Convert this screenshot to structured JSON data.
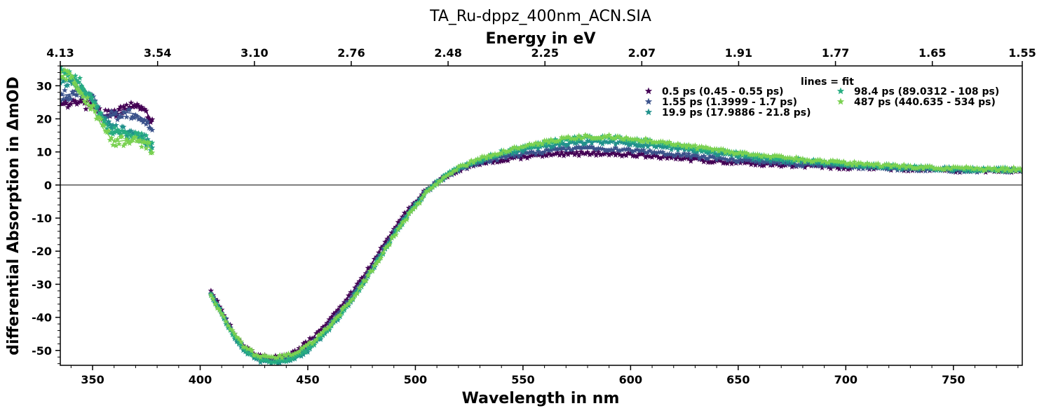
{
  "chart_data": {
    "type": "scatter",
    "title": "TA_Ru-dppz_400nm_ACN.SIA",
    "xlabel": "Wavelength in nm",
    "ylabel": "differential Absorption in ΔmOD",
    "top_xlabel": "Energy in eV",
    "xlim": [
      335,
      782
    ],
    "ylim": [
      -54.5,
      36
    ],
    "x_ticks": [
      350,
      400,
      450,
      500,
      550,
      600,
      650,
      700,
      750
    ],
    "y_ticks": [
      30,
      20,
      10,
      0,
      -10,
      -20,
      -30,
      -40,
      -50
    ],
    "top_ticks": [
      {
        "label": "4.13",
        "wavelength": 335
      },
      {
        "label": "3.54",
        "wavelength": 380.2
      },
      {
        "label": "3.10",
        "wavelength": 425.2
      },
      {
        "label": "2.76",
        "wavelength": 470.2
      },
      {
        "label": "2.48",
        "wavelength": 515.2
      },
      {
        "label": "2.25",
        "wavelength": 560.2
      },
      {
        "label": "2.07",
        "wavelength": 605.2
      },
      {
        "label": "1.91",
        "wavelength": 650.2
      },
      {
        "label": "1.77",
        "wavelength": 695.2
      },
      {
        "label": "1.65",
        "wavelength": 740.2
      },
      {
        "label": "1.55",
        "wavelength": 782
      }
    ],
    "zero_line": true,
    "grid": false,
    "legend_title": "lines = fit",
    "legend_position": "top-right",
    "series": [
      {
        "name": "0.5 ps (0.45 - 0.55 ps)",
        "color": "#440154",
        "uv": {
          "x": [
            335,
            340,
            345,
            350,
            355,
            360,
            365,
            370,
            375,
            378
          ],
          "y": [
            24,
            24.5,
            25,
            23.5,
            21,
            22,
            23,
            24,
            22,
            19
          ]
        },
        "vis": {
          "x": [
            405,
            410,
            415,
            420,
            425,
            430,
            435,
            440,
            445,
            450,
            455,
            460,
            465,
            470,
            475,
            480,
            485,
            490,
            495,
            500,
            505,
            510,
            515,
            520,
            530,
            540,
            550,
            560,
            570,
            580,
            590,
            600,
            620,
            640,
            660,
            680,
            700,
            720,
            740,
            760,
            782
          ],
          "y": [
            -32,
            -38,
            -44,
            -48.5,
            -51,
            -52,
            -52,
            -51.5,
            -50,
            -47.5,
            -44.5,
            -41,
            -37,
            -33,
            -28.5,
            -23.5,
            -18.5,
            -13.5,
            -9,
            -5,
            -1.5,
            1,
            3,
            4.5,
            6.5,
            7.7,
            8.5,
            9,
            9.4,
            9.5,
            9.5,
            9.2,
            8.2,
            7.2,
            6.4,
            5.8,
            5.3,
            5,
            4.6,
            4.3,
            4.3
          ]
        }
      },
      {
        "name": "1.55 ps (1.3999 - 1.7 ps)",
        "color": "#3b528b",
        "uv": {
          "x": [
            335,
            340,
            345,
            350,
            355,
            360,
            365,
            370,
            375,
            378
          ],
          "y": [
            27,
            27.5,
            27.5,
            26,
            20,
            21,
            22,
            21.5,
            19.5,
            16.5
          ]
        },
        "vis": {
          "x": [
            405,
            410,
            415,
            420,
            425,
            430,
            435,
            440,
            445,
            450,
            455,
            460,
            465,
            470,
            475,
            480,
            485,
            490,
            495,
            500,
            505,
            510,
            515,
            520,
            530,
            540,
            550,
            560,
            570,
            580,
            590,
            600,
            620,
            640,
            660,
            680,
            700,
            720,
            740,
            760,
            782
          ],
          "y": [
            -32.5,
            -38.5,
            -44.5,
            -49,
            -51.7,
            -52.8,
            -53,
            -52.5,
            -51.2,
            -49,
            -46,
            -42.5,
            -38.5,
            -34.3,
            -29.8,
            -24.8,
            -19.7,
            -14.6,
            -9.9,
            -5.7,
            -2,
            0.8,
            3,
            4.6,
            6.8,
            8.3,
            9.4,
            10.2,
            10.8,
            11,
            10.9,
            10.5,
            9.3,
            8,
            7,
            6.2,
            5.6,
            5.1,
            4.7,
            4.4,
            4.4
          ]
        }
      },
      {
        "name": "19.9 ps (17.9886 - 21.8 ps)",
        "color": "#21918c",
        "uv": {
          "x": [
            335,
            340,
            345,
            350,
            355,
            360,
            365,
            370,
            375,
            378
          ],
          "y": [
            32,
            31,
            29,
            25,
            19,
            17,
            16,
            15.5,
            13.5,
            11
          ]
        },
        "vis": {
          "x": [
            405,
            410,
            415,
            420,
            425,
            430,
            435,
            440,
            445,
            450,
            455,
            460,
            465,
            470,
            475,
            480,
            485,
            490,
            495,
            500,
            505,
            510,
            515,
            520,
            530,
            540,
            550,
            560,
            570,
            580,
            590,
            600,
            620,
            640,
            660,
            680,
            700,
            720,
            740,
            760,
            782
          ],
          "y": [
            -33,
            -39,
            -45,
            -49.5,
            -52.3,
            -53.5,
            -53.8,
            -53.4,
            -52.2,
            -50,
            -47,
            -43.5,
            -39.5,
            -35.2,
            -30.6,
            -25.5,
            -20.3,
            -15.1,
            -10.3,
            -6,
            -2.2,
            0.8,
            3.2,
            5,
            7.4,
            9.2,
            10.6,
            11.7,
            12.5,
            13,
            13,
            12.6,
            11.2,
            9.5,
            8.1,
            7,
            6.1,
            5.5,
            5,
            4.6,
            4.5
          ]
        }
      },
      {
        "name": "98.4 ps (89.0312 - 108 ps)",
        "color": "#27ad81",
        "uv": {
          "x": [
            335,
            340,
            345,
            350,
            355,
            360,
            365,
            370,
            375,
            378
          ],
          "y": [
            34,
            33.5,
            30.5,
            25.5,
            19,
            16,
            15.5,
            15,
            13.5,
            11
          ]
        },
        "vis": {
          "x": [
            405,
            410,
            415,
            420,
            425,
            430,
            435,
            440,
            445,
            450,
            455,
            460,
            465,
            470,
            475,
            480,
            485,
            490,
            495,
            500,
            505,
            510,
            515,
            520,
            530,
            540,
            550,
            560,
            570,
            580,
            590,
            600,
            620,
            640,
            660,
            680,
            700,
            720,
            740,
            760,
            782
          ],
          "y": [
            -33,
            -39,
            -44.8,
            -49.3,
            -52,
            -53.2,
            -53.4,
            -53,
            -51.8,
            -49.6,
            -46.6,
            -43.1,
            -39.2,
            -35,
            -30.5,
            -25.5,
            -20.4,
            -15.3,
            -10.5,
            -6.2,
            -2.3,
            0.8,
            3.3,
            5.2,
            7.8,
            9.8,
            11.4,
            12.7,
            13.7,
            14.3,
            14.3,
            13.8,
            12.2,
            10.3,
            8.7,
            7.4,
            6.4,
            5.7,
            5.2,
            4.8,
            4.6
          ]
        }
      },
      {
        "name": "487 ps (440.635 - 534 ps)",
        "color": "#7ad151",
        "uv": {
          "x": [
            335,
            340,
            345,
            350,
            355,
            360,
            365,
            370,
            375,
            378
          ],
          "y": [
            33,
            33.5,
            28,
            23,
            17,
            13,
            13.5,
            13,
            12.5,
            10
          ]
        },
        "vis": {
          "x": [
            405,
            410,
            415,
            420,
            425,
            430,
            435,
            440,
            445,
            450,
            455,
            460,
            465,
            470,
            475,
            480,
            485,
            490,
            495,
            500,
            505,
            510,
            515,
            520,
            530,
            540,
            550,
            560,
            570,
            580,
            590,
            600,
            620,
            640,
            660,
            680,
            700,
            720,
            740,
            760,
            782
          ],
          "y": [
            -33.5,
            -39,
            -44.2,
            -48.5,
            -51,
            -52,
            -52,
            -51.6,
            -50.5,
            -48.5,
            -45.8,
            -42.5,
            -38.8,
            -34.8,
            -30.4,
            -25.5,
            -20.5,
            -15.5,
            -10.8,
            -6.5,
            -2.5,
            0.6,
            3.2,
            5.2,
            7.9,
            10,
            11.7,
            13,
            14,
            14.6,
            14.6,
            14.1,
            12.5,
            10.5,
            8.9,
            7.6,
            6.6,
            5.8,
            5.3,
            4.9,
            4.7
          ]
        }
      }
    ]
  }
}
